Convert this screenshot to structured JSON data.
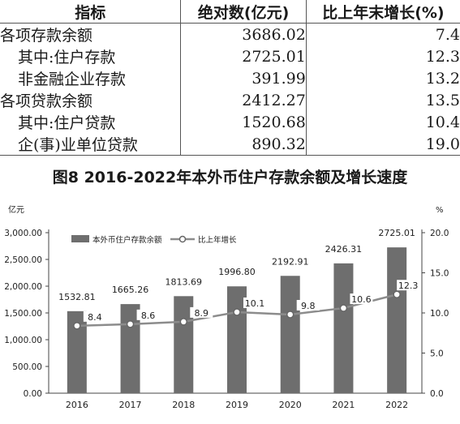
{
  "table": {
    "headers": [
      "指标",
      "绝对数(亿元)",
      "比上年末增长(%)"
    ],
    "rows": [
      {
        "name": "各项存款余额",
        "value": "3686.02",
        "growth": "7.4",
        "indent": false
      },
      {
        "name": "其中:住户存款",
        "value": "2725.01",
        "growth": "12.3",
        "indent": true
      },
      {
        "name": "非金融企业存款",
        "value": "391.99",
        "growth": "13.2",
        "indent": true
      },
      {
        "name": "各项贷款余额",
        "value": "2412.27",
        "growth": "13.5",
        "indent": false
      },
      {
        "name": "其中:住户贷款",
        "value": "1520.68",
        "growth": "10.4",
        "indent": true
      },
      {
        "name": "企(事)业单位贷款",
        "value": "890.32",
        "growth": "19.0",
        "indent": true
      }
    ]
  },
  "figure": {
    "title": "图8   2016-2022年本外币住户存款余额及增长速度"
  },
  "chart_data": {
    "type": "bar",
    "categories": [
      "2016",
      "2017",
      "2018",
      "2019",
      "2020",
      "2021",
      "2022"
    ],
    "series": [
      {
        "name": "本外币住户存款余额",
        "type": "bar",
        "axis": "left",
        "values": [
          1532.81,
          1665.26,
          1813.69,
          1996.8,
          2192.91,
          2426.31,
          2725.01
        ],
        "labels": [
          "1532.81",
          "1665.26",
          "1813.69",
          "1996.80",
          "2192.91",
          "2426.31",
          "2725.01"
        ]
      },
      {
        "name": "比上年增长",
        "type": "line",
        "axis": "right",
        "values": [
          8.4,
          8.6,
          8.9,
          10.1,
          9.8,
          10.6,
          12.3
        ],
        "labels": [
          "8.4",
          "8.6",
          "8.9",
          "10.1",
          "9.8",
          "10.6",
          "12.3"
        ]
      }
    ],
    "left_axis": {
      "unit": "亿元",
      "ylim": [
        0,
        3000
      ],
      "ticks": [
        "0.00",
        "500.00",
        "1,000.00",
        "1,500.00",
        "2,000.00",
        "2,500.00",
        "3,000.00"
      ]
    },
    "right_axis": {
      "unit": "%",
      "ylim": [
        0,
        20
      ],
      "ticks": [
        "0.0",
        "5.0",
        "10.0",
        "15.0",
        "20.0"
      ]
    },
    "legend_position": "top-left",
    "grid": false,
    "colors": {
      "bar": "#6e6e6e",
      "line": "#8c8c8c"
    }
  }
}
